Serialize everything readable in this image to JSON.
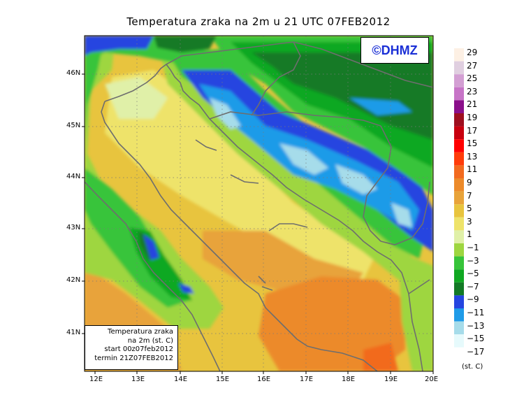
{
  "title": "Temperatura zraka na 2m u 21 UTC 07FEB2012",
  "logo": "©DHMZ",
  "info_box": {
    "line1": "Temperatura zraka",
    "line2": "na 2m (st. C)",
    "line3": "start 00z07feb2012",
    "line4": "termin 21Z07FEB2012"
  },
  "axes": {
    "lon_ticks": [
      "12E",
      "13E",
      "14E",
      "15E",
      "16E",
      "17E",
      "18E",
      "19E",
      "20E"
    ],
    "lat_ticks": [
      "46N",
      "45N",
      "44N",
      "43N",
      "42N",
      "41N"
    ]
  },
  "legend": {
    "unit": "(st. C)",
    "levels": [
      {
        "label": "29",
        "color": "#fdf0e4"
      },
      {
        "label": "27",
        "color": "#e0cfe0"
      },
      {
        "label": "25",
        "color": "#d39fd3"
      },
      {
        "label": "23",
        "color": "#c774c7"
      },
      {
        "label": "21",
        "color": "#8a0f8a"
      },
      {
        "label": "19",
        "color": "#9e0f1f"
      },
      {
        "label": "17",
        "color": "#c8000f"
      },
      {
        "label": "15",
        "color": "#ff0000"
      },
      {
        "label": "13",
        "color": "#ff3c0a"
      },
      {
        "label": "11",
        "color": "#f26a1f"
      },
      {
        "label": "9",
        "color": "#ec8a2a"
      },
      {
        "label": "7",
        "color": "#e8a33a"
      },
      {
        "label": "5",
        "color": "#e8c43e"
      },
      {
        "label": "3",
        "color": "#eee36a"
      },
      {
        "label": "1",
        "color": "#e0f0a8"
      },
      {
        "label": "−1",
        "color": "#9ed640"
      },
      {
        "label": "−3",
        "color": "#37c43a"
      },
      {
        "label": "−5",
        "color": "#10a822"
      },
      {
        "label": "−7",
        "color": "#137a26"
      },
      {
        "label": "−9",
        "color": "#2545e0"
      },
      {
        "label": "−11",
        "color": "#1f9be8"
      },
      {
        "label": "−13",
        "color": "#a6dcea"
      },
      {
        "label": "−15",
        "color": "#e6fafc"
      },
      {
        "label": "−17",
        "color": "#ffffff"
      }
    ]
  },
  "colors": {
    "coastline": "#6e6e6e",
    "grid": "#7a7a7a",
    "frame": "#000000"
  }
}
